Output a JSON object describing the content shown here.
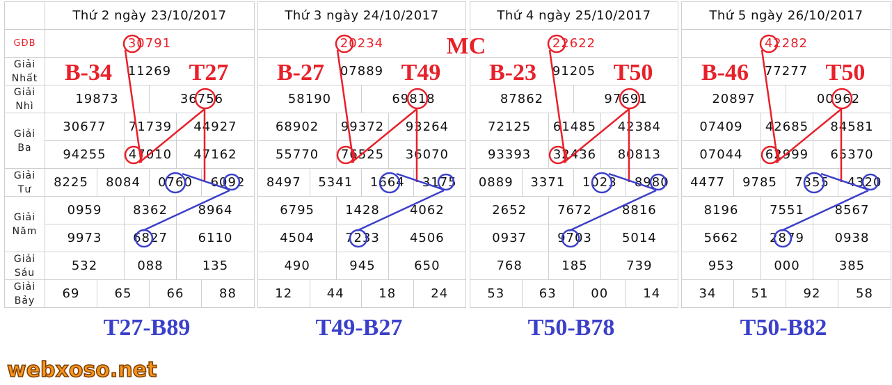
{
  "row_labels": [
    "",
    "GĐB",
    "Giải\nNhất",
    "Giải\nNhì",
    "Giải\nBa",
    "Giải\nTư",
    "Giải\nNăm",
    "Giải\nSáu",
    "Giải\nBảy"
  ],
  "watermark": "webxoso.net",
  "middle_label": "MC",
  "panels": [
    {
      "header": "Thứ 2 ngày 23/10/2017",
      "gdb": "30791",
      "nhat": "11269",
      "nhi": [
        "19873",
        "36756"
      ],
      "ba": [
        "30677",
        "71739",
        "44927",
        "94255",
        "47010",
        "47162"
      ],
      "tu": [
        "8225",
        "8084",
        "0760",
        "6092"
      ],
      "nam": [
        "0959",
        "8362",
        "8964",
        "9973",
        "6827",
        "6110"
      ],
      "sau": [
        "532",
        "088",
        "135"
      ],
      "bay": [
        "69",
        "65",
        "66",
        "88"
      ],
      "tag_b": "B-34",
      "tag_t": "T27",
      "tag_bottom": "T27-B89"
    },
    {
      "header": "Thứ 3 ngày 24/10/2017",
      "gdb": "20234",
      "nhat": "07889",
      "nhi": [
        "58190",
        "69818"
      ],
      "ba": [
        "68902",
        "99372",
        "93264",
        "55770",
        "76525",
        "36070"
      ],
      "tu": [
        "8497",
        "5341",
        "1664",
        "3175"
      ],
      "nam": [
        "6795",
        "1428",
        "4062",
        "4504",
        "7233",
        "4506"
      ],
      "sau": [
        "490",
        "945",
        "650"
      ],
      "bay": [
        "12",
        "44",
        "18",
        "24"
      ],
      "tag_b": "B-27",
      "tag_t": "T49",
      "tag_bottom": "T49-B27"
    },
    {
      "header": "Thứ 4 ngày 25/10/2017",
      "gdb": "22622",
      "nhat": "91205",
      "nhi": [
        "87862",
        "97691"
      ],
      "ba": [
        "72125",
        "61485",
        "42384",
        "93393",
        "32436",
        "80813"
      ],
      "tu": [
        "0889",
        "3371",
        "1023",
        "8980"
      ],
      "nam": [
        "2652",
        "7672",
        "8816",
        "0937",
        "9703",
        "5014"
      ],
      "sau": [
        "768",
        "185",
        "739"
      ],
      "bay": [
        "53",
        "63",
        "00",
        "14"
      ],
      "tag_b": "B-23",
      "tag_t": "T50",
      "tag_bottom": "T50-B78"
    },
    {
      "header": "Thứ 5 ngày 26/10/2017",
      "gdb": "42282",
      "nhat": "77277",
      "nhi": [
        "20897",
        "00962"
      ],
      "ba": [
        "07409",
        "42685",
        "84581",
        "07044",
        "62999",
        "65370"
      ],
      "tu": [
        "4477",
        "9785",
        "7355",
        "4320"
      ],
      "nam": [
        "8196",
        "7551",
        "8567",
        "5662",
        "2879",
        "0938"
      ],
      "sau": [
        "953",
        "000",
        "385"
      ],
      "bay": [
        "34",
        "51",
        "92",
        "58"
      ],
      "tag_b": "B-46",
      "tag_t": "T50",
      "tag_bottom": "T50-B82"
    }
  ],
  "colors": {
    "red": "#e8202a",
    "blue": "#3b40c9",
    "watermark": "#f7941d",
    "grid": "#cfcfcf"
  }
}
